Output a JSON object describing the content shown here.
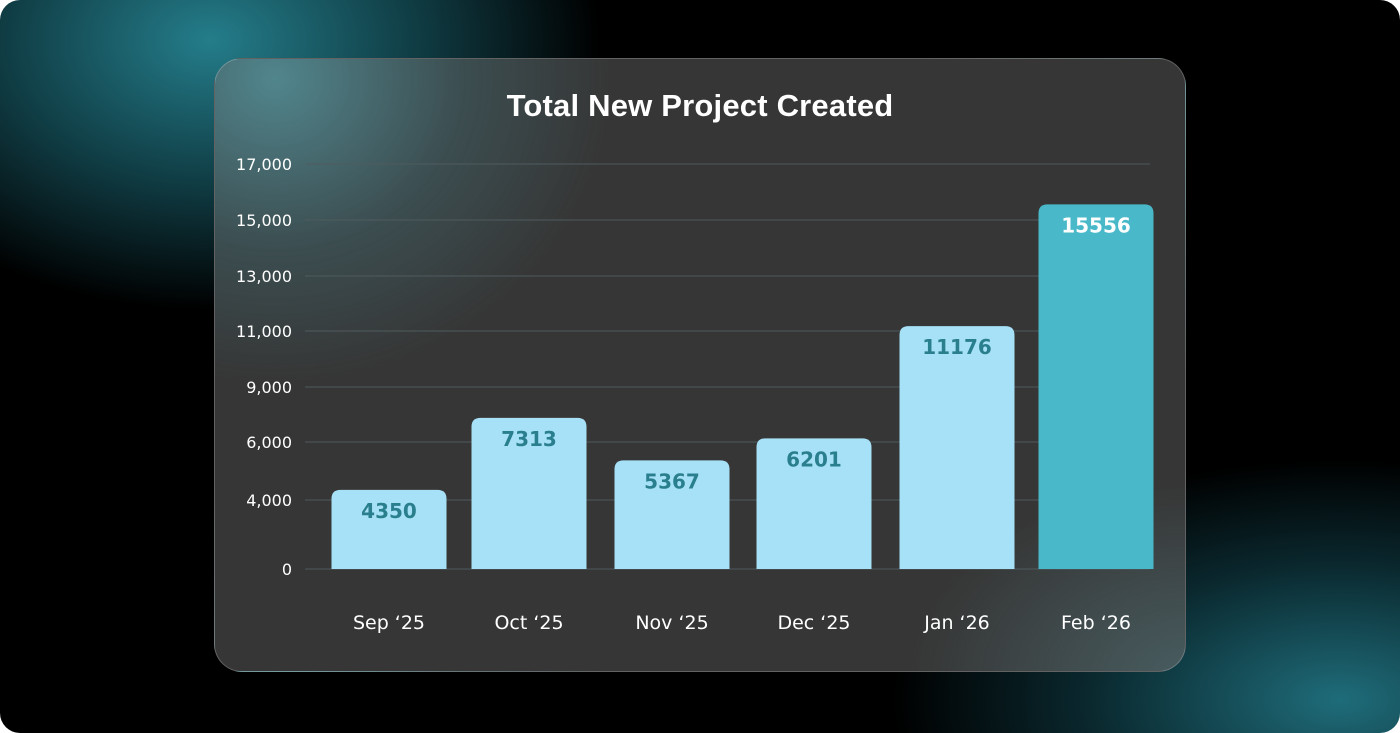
{
  "colors": {
    "bar_default": "#a6e1f7",
    "bar_highlight": "#49b9ca",
    "label_on_default": "#2a7f8f",
    "label_on_highlight": "#ffffff",
    "gridline": "#4f5b5e",
    "background": "#000000",
    "card": "#363636"
  },
  "chart_data": {
    "type": "bar",
    "title": "Total New Project Created",
    "xlabel": "",
    "ylabel": "",
    "categories": [
      "Sep ‘25",
      "Oct ‘25",
      "Nov ‘25",
      "Dec ‘25",
      "Jan ‘26",
      "Feb ‘26"
    ],
    "values": [
      4350,
      7313,
      5367,
      6201,
      11176,
      15556
    ],
    "highlight_index": 5,
    "y_ticks": [
      0,
      4000,
      6000,
      9000,
      11000,
      13000,
      15000,
      17000
    ],
    "y_tick_labels": [
      "0",
      "4,000",
      "6,000",
      "9,000",
      "11,000",
      "13,000",
      "15,000",
      "17,000"
    ],
    "ylim": [
      0,
      17000
    ],
    "grid": true,
    "legend": "none"
  }
}
